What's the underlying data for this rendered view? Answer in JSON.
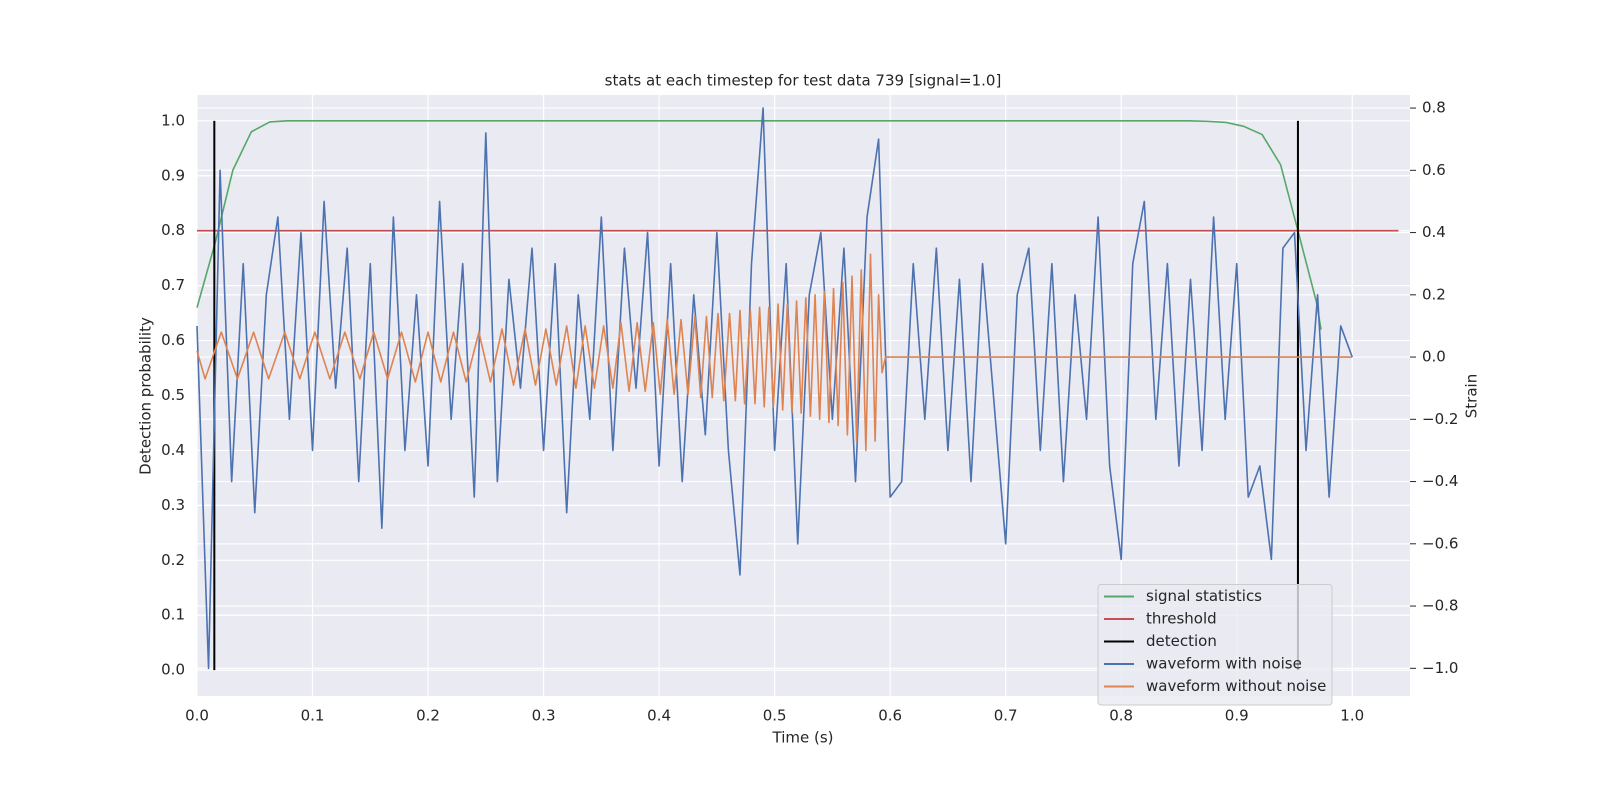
{
  "chart_data": {
    "type": "line",
    "title": "stats at each timestep for test data 739 [signal=1.0]",
    "x_label": "Time (s)",
    "y_label": "Detection probability",
    "y2_label": "Strain",
    "xlim": [
      0,
      1.05
    ],
    "ylim": [
      -0.047,
      1.047
    ],
    "y2lim": [
      -1.089,
      0.842
    ],
    "grid": true,
    "legend": "lower right",
    "xticks": [
      {
        "value": 0,
        "label": "0.0"
      },
      0.1,
      0.2,
      0.3,
      0.4,
      0.5,
      0.6,
      0.7,
      0.8,
      0.9,
      {
        "value": 1,
        "label": "1.0"
      }
    ],
    "yticks": [
      {
        "value": 0,
        "label": "0.0"
      },
      0.1,
      0.2,
      0.3,
      0.4,
      0.5,
      0.6,
      0.7,
      0.8,
      0.9,
      {
        "value": 1,
        "label": "1.0"
      }
    ],
    "y2ticks": [
      {
        "value": -1,
        "label": "−1.0"
      },
      {
        "value": -0.8,
        "label": "−0.8"
      },
      {
        "value": -0.6,
        "label": "−0.6"
      },
      {
        "value": -0.4,
        "label": "−0.4"
      },
      {
        "value": -0.2,
        "label": "−0.2"
      },
      {
        "value": 0,
        "label": "0.0"
      },
      0.2,
      0.4,
      0.6,
      0.8
    ],
    "series": [
      {
        "name": "signal statistics",
        "color": "#55a868",
        "x": [
          0,
          0.016,
          0.031,
          0.047,
          0.063,
          0.078,
          0.5,
          0.859,
          0.875,
          0.891,
          0.906,
          0.922,
          0.938,
          0.953,
          0.969,
          0.973
        ],
        "values": [
          0.66,
          0.78,
          0.91,
          0.98,
          0.998,
          1.0,
          1.0,
          1.0,
          0.999,
          0.997,
          0.99,
          0.975,
          0.92,
          0.8,
          0.67,
          0.62
        ]
      },
      {
        "name": "threshold",
        "color": "#c44e52",
        "x": [
          0,
          1.04
        ],
        "values": [
          0.8,
          0.8
        ]
      },
      {
        "name": "detection",
        "color": "#000000",
        "x": [
          0.015,
          0.953
        ],
        "ymin": 0,
        "ymax": 1
      },
      {
        "name": "waveform with noise",
        "color": "#4c72b0",
        "axis": "y2",
        "x": [
          0,
          0.01,
          0.02,
          0.03,
          0.04,
          0.05,
          0.06,
          0.07,
          0.08,
          0.09,
          0.1,
          0.11,
          0.12,
          0.13,
          0.14,
          0.15,
          0.16,
          0.17,
          0.18,
          0.19,
          0.2,
          0.21,
          0.22,
          0.23,
          0.24,
          0.25,
          0.26,
          0.27,
          0.28,
          0.29,
          0.3,
          0.31,
          0.32,
          0.33,
          0.34,
          0.35,
          0.36,
          0.37,
          0.38,
          0.39,
          0.4,
          0.41,
          0.42,
          0.43,
          0.44,
          0.45,
          0.46,
          0.47,
          0.48,
          0.49,
          0.5,
          0.51,
          0.52,
          0.53,
          0.54,
          0.55,
          0.56,
          0.57,
          0.58,
          0.59,
          0.6,
          0.61,
          0.62,
          0.63,
          0.64,
          0.65,
          0.66,
          0.67,
          0.68,
          0.69,
          0.7,
          0.71,
          0.72,
          0.73,
          0.74,
          0.75,
          0.76,
          0.77,
          0.78,
          0.79,
          0.8,
          0.81,
          0.82,
          0.83,
          0.84,
          0.85,
          0.86,
          0.87,
          0.88,
          0.89,
          0.9,
          0.91,
          0.92,
          0.93,
          0.94,
          0.95,
          0.96,
          0.97,
          0.98,
          0.99,
          1.0
        ],
        "values": [
          0.1,
          -1.0,
          0.6,
          -0.4,
          0.3,
          -0.5,
          0.2,
          0.45,
          -0.2,
          0.4,
          -0.3,
          0.5,
          -0.1,
          0.35,
          -0.4,
          0.3,
          -0.55,
          0.45,
          -0.3,
          0.2,
          -0.35,
          0.5,
          -0.2,
          0.3,
          -0.45,
          0.72,
          -0.4,
          0.25,
          -0.1,
          0.35,
          -0.3,
          0.3,
          -0.5,
          0.2,
          -0.2,
          0.45,
          -0.3,
          0.35,
          -0.1,
          0.4,
          -0.35,
          0.3,
          -0.4,
          0.2,
          -0.25,
          0.4,
          -0.3,
          -0.7,
          0.3,
          0.8,
          -0.3,
          0.3,
          -0.6,
          0.2,
          0.4,
          -0.2,
          0.35,
          -0.4,
          0.45,
          0.7,
          -0.45,
          -0.4,
          0.3,
          -0.2,
          0.35,
          -0.3,
          0.25,
          -0.4,
          0.3,
          -0.15,
          -0.6,
          0.2,
          0.35,
          -0.3,
          0.3,
          -0.4,
          0.2,
          -0.2,
          0.45,
          -0.35,
          -0.65,
          0.3,
          0.5,
          -0.2,
          0.3,
          -0.35,
          0.25,
          -0.3,
          0.45,
          -0.2,
          0.3,
          -0.45,
          -0.35,
          -0.65,
          0.35,
          0.4,
          -0.3,
          0.2,
          -0.45,
          0.1,
          0.0
        ]
      },
      {
        "name": "waveform without noise",
        "color": "#dd8452",
        "axis": "y2",
        "x": [
          0,
          0.007,
          0.021,
          0.035,
          0.049,
          0.062,
          0.076,
          0.089,
          0.102,
          0.115,
          0.128,
          0.141,
          0.153,
          0.165,
          0.177,
          0.189,
          0.2,
          0.211,
          0.222,
          0.233,
          0.244,
          0.254,
          0.264,
          0.274,
          0.284,
          0.293,
          0.302,
          0.311,
          0.32,
          0.328,
          0.336,
          0.344,
          0.352,
          0.36,
          0.367,
          0.374,
          0.381,
          0.388,
          0.395,
          0.401,
          0.407,
          0.413,
          0.419,
          0.425,
          0.431,
          0.436,
          0.441,
          0.446,
          0.451,
          0.456,
          0.461,
          0.466,
          0.47,
          0.474,
          0.479,
          0.483,
          0.487,
          0.491,
          0.495,
          0.499,
          0.503,
          0.507,
          0.511,
          0.515,
          0.519,
          0.523,
          0.527,
          0.531,
          0.535,
          0.539,
          0.543,
          0.547,
          0.551,
          0.555,
          0.559,
          0.563,
          0.567,
          0.571,
          0.575,
          0.579,
          0.583,
          0.587,
          0.59,
          0.593,
          0.596,
          1.0
        ],
        "values": [
          0.02,
          -0.07,
          0.08,
          -0.07,
          0.08,
          -0.07,
          0.08,
          -0.07,
          0.08,
          -0.07,
          0.08,
          -0.07,
          0.08,
          -0.07,
          0.08,
          -0.08,
          0.08,
          -0.08,
          0.08,
          -0.08,
          0.08,
          -0.08,
          0.09,
          -0.09,
          0.09,
          -0.09,
          0.09,
          -0.09,
          0.1,
          -0.1,
          0.1,
          -0.1,
          0.1,
          -0.1,
          0.11,
          -0.11,
          0.11,
          -0.11,
          0.11,
          -0.12,
          0.12,
          -0.12,
          0.12,
          -0.12,
          0.13,
          -0.13,
          0.13,
          -0.13,
          0.14,
          -0.14,
          0.14,
          -0.14,
          0.15,
          -0.15,
          0.15,
          -0.15,
          0.16,
          -0.16,
          0.16,
          -0.16,
          0.17,
          -0.17,
          0.17,
          -0.18,
          0.18,
          -0.18,
          0.19,
          -0.19,
          0.2,
          -0.2,
          0.21,
          -0.21,
          0.22,
          -0.22,
          0.24,
          -0.25,
          0.26,
          -0.27,
          0.28,
          -0.3,
          0.33,
          -0.27,
          0.2,
          -0.05,
          0.0,
          0.0
        ]
      }
    ]
  }
}
